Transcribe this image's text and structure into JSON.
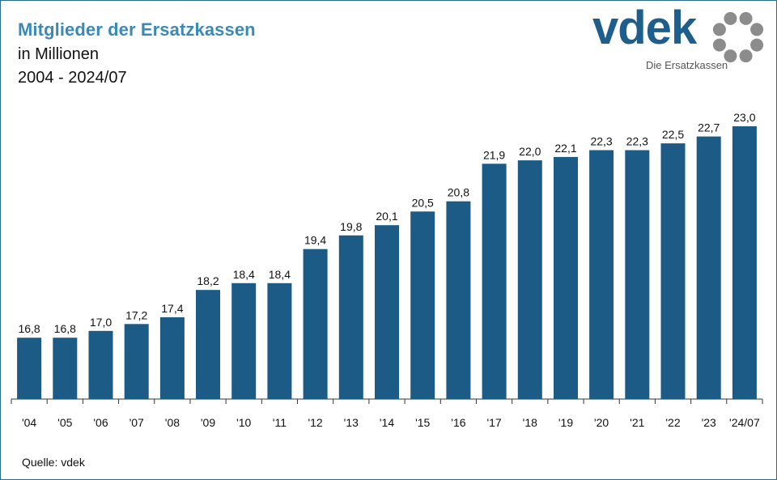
{
  "header": {
    "title": "Mitglieder der Ersatzkassen",
    "subtitle": "in Millionen",
    "period": "2004 - 2024/07"
  },
  "logo": {
    "wordmark": "vdek",
    "tagline": "Die Ersatzkassen",
    "icon": "ring-of-dots-icon"
  },
  "footer": {
    "source": "Quelle: vdek"
  },
  "colors": {
    "bar": "#1b5b85",
    "title": "#3a8ab5",
    "logo": "#1d5e8c",
    "logo_dots": "#8c8c8c"
  },
  "chart_data": {
    "type": "bar",
    "categories": [
      "'04",
      "'05",
      "'06",
      "'07",
      "'08",
      "'09",
      "'10",
      "'11",
      "'12",
      "'13",
      "'14",
      "'15",
      "'16",
      "'17",
      "'18",
      "'19",
      "'20",
      "'21",
      "'22",
      "'23",
      "'24/07"
    ],
    "values": [
      16.8,
      16.8,
      17.0,
      17.2,
      17.4,
      18.2,
      18.4,
      18.4,
      19.4,
      19.8,
      20.1,
      20.5,
      20.8,
      21.9,
      22.0,
      22.1,
      22.3,
      22.3,
      22.5,
      22.7,
      23.0
    ],
    "value_labels": [
      "16,8",
      "16,8",
      "17,0",
      "17,2",
      "17,4",
      "18,2",
      "18,4",
      "18,4",
      "19,4",
      "19,8",
      "20,1",
      "20,5",
      "20,8",
      "21,9",
      "22,0",
      "22,1",
      "22,3",
      "22,3",
      "22,5",
      "22,7",
      "23,0"
    ],
    "ylim": [
      15,
      23.5
    ],
    "grid": false,
    "legend": "none",
    "xlabel": "",
    "ylabel": ""
  }
}
